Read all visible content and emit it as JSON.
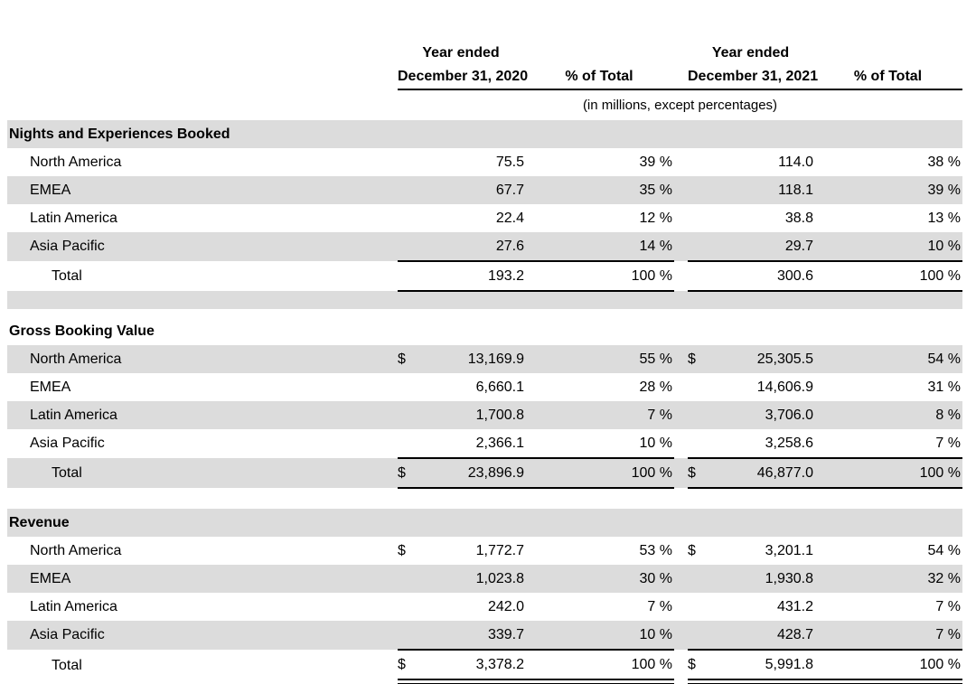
{
  "page": {
    "background_color": "#ffffff",
    "stripe_color": "#dcdcdc",
    "text_color": "#000000"
  },
  "table": {
    "header": {
      "year_ended_label": "Year ended",
      "col_2020": "December 31, 2020",
      "col_2021": "December 31, 2021",
      "pct_label": "% of Total",
      "units_note": "(in millions, except percentages)"
    },
    "sections": [
      {
        "title": "Nights and Experiences Booked",
        "rows": [
          {
            "label": "North America",
            "d2020": "",
            "v2020": "75.5",
            "p2020": "39 %",
            "d2021": "",
            "v2021": "114.0",
            "p2021": "38 %"
          },
          {
            "label": "EMEA",
            "d2020": "",
            "v2020": "67.7",
            "p2020": "35 %",
            "d2021": "",
            "v2021": "118.1",
            "p2021": "39 %"
          },
          {
            "label": "Latin America",
            "d2020": "",
            "v2020": "22.4",
            "p2020": "12 %",
            "d2021": "",
            "v2021": "38.8",
            "p2021": "13 %"
          },
          {
            "label": "Asia Pacific",
            "d2020": "",
            "v2020": "27.6",
            "p2020": "14 %",
            "d2021": "",
            "v2021": "29.7",
            "p2021": "10 %"
          }
        ],
        "total": {
          "label": "Total",
          "d2020": "",
          "v2020": "193.2",
          "p2020": "100 %",
          "d2021": "",
          "v2021": "300.6",
          "p2021": "100 %"
        }
      },
      {
        "title": "Gross Booking Value",
        "rows": [
          {
            "label": "North America",
            "d2020": "$",
            "v2020": "13,169.9",
            "p2020": "55 %",
            "d2021": "$",
            "v2021": "25,305.5",
            "p2021": "54 %"
          },
          {
            "label": "EMEA",
            "d2020": "",
            "v2020": "6,660.1",
            "p2020": "28 %",
            "d2021": "",
            "v2021": "14,606.9",
            "p2021": "31 %"
          },
          {
            "label": "Latin America",
            "d2020": "",
            "v2020": "1,700.8",
            "p2020": "7 %",
            "d2021": "",
            "v2021": "3,706.0",
            "p2021": "8 %"
          },
          {
            "label": "Asia Pacific",
            "d2020": "",
            "v2020": "2,366.1",
            "p2020": "10 %",
            "d2021": "",
            "v2021": "3,258.6",
            "p2021": "7 %"
          }
        ],
        "total": {
          "label": "Total",
          "d2020": "$",
          "v2020": "23,896.9",
          "p2020": "100 %",
          "d2021": "$",
          "v2021": "46,877.0",
          "p2021": "100 %"
        }
      },
      {
        "title": "Revenue",
        "rows": [
          {
            "label": "North America",
            "d2020": "$",
            "v2020": "1,772.7",
            "p2020": "53 %",
            "d2021": "$",
            "v2021": "3,201.1",
            "p2021": "54 %"
          },
          {
            "label": "EMEA",
            "d2020": "",
            "v2020": "1,023.8",
            "p2020": "30 %",
            "d2021": "",
            "v2021": "1,930.8",
            "p2021": "32 %"
          },
          {
            "label": "Latin America",
            "d2020": "",
            "v2020": "242.0",
            "p2020": "7 %",
            "d2021": "",
            "v2021": "431.2",
            "p2021": "7 %"
          },
          {
            "label": "Asia Pacific",
            "d2020": "",
            "v2020": "339.7",
            "p2020": "10 %",
            "d2021": "",
            "v2021": "428.7",
            "p2021": "7 %"
          }
        ],
        "total": {
          "label": "Total",
          "d2020": "$",
          "v2020": "3,378.2",
          "p2020": "100 %",
          "d2021": "$",
          "v2021": "5,991.8",
          "p2021": "100 %"
        }
      }
    ]
  }
}
